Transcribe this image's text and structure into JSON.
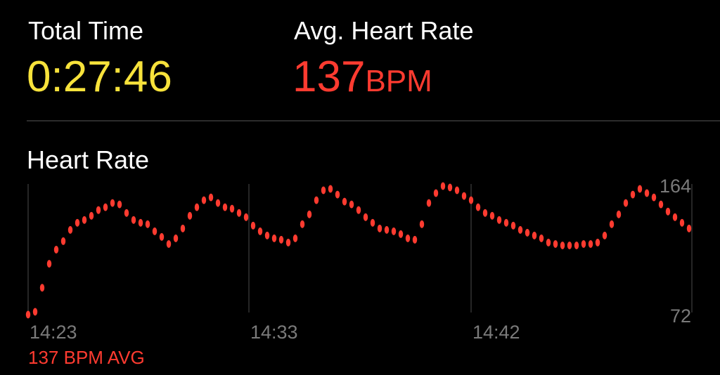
{
  "metrics": [
    {
      "label": "Total Time",
      "value": "0:27:46"
    },
    {
      "label": "Avg. Heart Rate",
      "value": "137",
      "unit": "BPM"
    }
  ],
  "chart_data": {
    "type": "line",
    "title": "Heart Rate",
    "color": "#ff3b30",
    "values": [
      73,
      75,
      92,
      109,
      119,
      125,
      133,
      138,
      140,
      143,
      147,
      149,
      152,
      151,
      145,
      140,
      138,
      137,
      132,
      128,
      123,
      127,
      134,
      143,
      149,
      154,
      156,
      152,
      149,
      148,
      145,
      142,
      136,
      132,
      129,
      127,
      126,
      124,
      127,
      137,
      144,
      154,
      161,
      162,
      158,
      153,
      151,
      147,
      142,
      138,
      134,
      133,
      132,
      130,
      127,
      126,
      137,
      152,
      159,
      164,
      163,
      161,
      157,
      154,
      149,
      145,
      143,
      140,
      138,
      136,
      133,
      131,
      129,
      127,
      124,
      123,
      122,
      122,
      122,
      123,
      123,
      124,
      129,
      137,
      144,
      152,
      158,
      162,
      159,
      156,
      151,
      146,
      142,
      138,
      134
    ],
    "xlim": [
      0,
      94
    ],
    "xticks": [
      {
        "value": 0,
        "label": "14:23"
      },
      {
        "value": 31.4,
        "label": "14:33"
      },
      {
        "value": 63,
        "label": "14:42"
      }
    ],
    "ylim": [
      72,
      164
    ],
    "yticks": [
      72,
      164
    ],
    "grid": true,
    "annotation": "137 BPM AVG"
  }
}
